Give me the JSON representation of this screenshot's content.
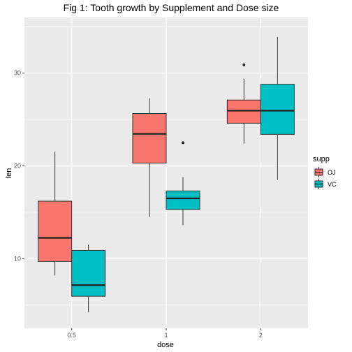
{
  "chart_data": {
    "type": "boxplot",
    "title": "Fig 1: Tooth growth by Supplement and Dose size",
    "xlabel": "dose",
    "ylabel": "len",
    "categories": [
      "0.5",
      "1",
      "2"
    ],
    "y_ticks": [
      10,
      20,
      30
    ],
    "ylim": [
      2.5,
      36.0
    ],
    "grid": true,
    "legend": {
      "title": "supp",
      "position": "right"
    },
    "colors": {
      "OJ": "#F8766D",
      "VC": "#00BFC4",
      "panel": "#EBEBEB",
      "grid": "#FFFFFF"
    },
    "series": [
      {
        "name": "OJ",
        "boxes": [
          {
            "category": "0.5",
            "lower_whisker": 8.2,
            "q1": 9.7,
            "median": 12.25,
            "q3": 16.2,
            "upper_whisker": 21.5,
            "outliers": []
          },
          {
            "category": "1",
            "lower_whisker": 14.5,
            "q1": 20.3,
            "median": 23.45,
            "q3": 25.65,
            "upper_whisker": 27.3,
            "outliers": []
          },
          {
            "category": "2",
            "lower_whisker": 22.4,
            "q1": 24.6,
            "median": 25.95,
            "q3": 27.1,
            "upper_whisker": 29.4,
            "outliers": [
              30.9
            ]
          }
        ]
      },
      {
        "name": "VC",
        "boxes": [
          {
            "category": "0.5",
            "lower_whisker": 4.2,
            "q1": 5.95,
            "median": 7.15,
            "q3": 10.9,
            "upper_whisker": 11.5,
            "outliers": []
          },
          {
            "category": "1",
            "lower_whisker": 13.6,
            "q1": 15.3,
            "median": 16.5,
            "q3": 17.3,
            "upper_whisker": 18.8,
            "outliers": [
              22.5
            ]
          },
          {
            "category": "2",
            "lower_whisker": 18.5,
            "q1": 23.4,
            "median": 25.95,
            "q3": 28.8,
            "upper_whisker": 33.9,
            "outliers": []
          }
        ]
      }
    ]
  }
}
